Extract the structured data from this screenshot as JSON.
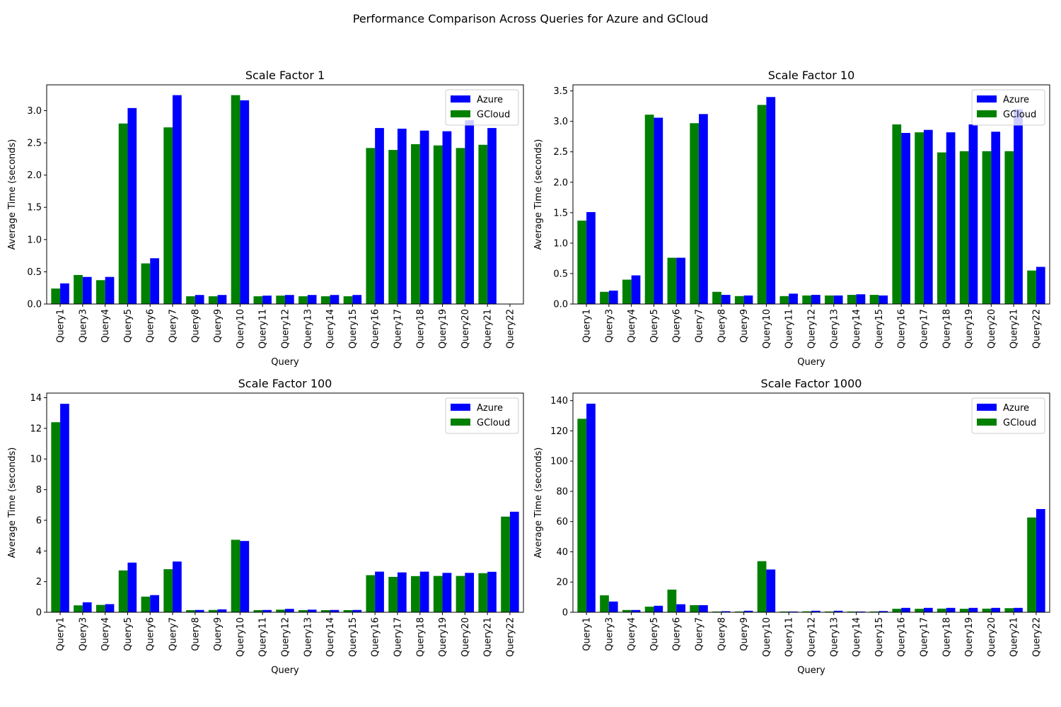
{
  "suptitle": "Performance Comparison Across Queries for Azure and GCloud",
  "colors": {
    "azure": "#0000ff",
    "gcloud": "#008000"
  },
  "chart_data": [
    {
      "type": "bar",
      "title": "Scale Factor 1",
      "xlabel": "Query",
      "ylabel": "Average Time (seconds)",
      "ylim": [
        0,
        3.4
      ],
      "yticks": [
        0.0,
        0.5,
        1.0,
        1.5,
        2.0,
        2.5,
        3.0
      ],
      "ytick_labels": [
        "0.0",
        "0.5",
        "1.0",
        "1.5",
        "2.0",
        "2.5",
        "3.0"
      ],
      "legend": {
        "placement": "upper right",
        "entries": [
          "Azure",
          "GCloud"
        ]
      },
      "categories": [
        "Query1",
        "Query3",
        "Query4",
        "Query5",
        "Query6",
        "Query7",
        "Query8",
        "Query9",
        "Query10",
        "Query11",
        "Query12",
        "Query13",
        "Query14",
        "Query15",
        "Query16",
        "Query17",
        "Query18",
        "Query19",
        "Query20",
        "Query21",
        "Query22"
      ],
      "series": [
        {
          "name": "GCloud",
          "values": [
            0.24,
            0.45,
            0.37,
            2.8,
            0.63,
            2.74,
            0.12,
            0.12,
            3.24,
            0.12,
            0.13,
            0.12,
            0.12,
            0.12,
            2.42,
            2.39,
            2.48,
            2.46,
            2.42,
            2.47,
            null
          ]
        },
        {
          "name": "Azure",
          "values": [
            0.32,
            0.42,
            0.42,
            3.04,
            0.71,
            3.24,
            0.14,
            0.14,
            3.16,
            0.13,
            0.14,
            0.14,
            0.14,
            0.14,
            2.73,
            2.72,
            2.69,
            2.68,
            2.85,
            2.73,
            null
          ]
        }
      ]
    },
    {
      "type": "bar",
      "title": "Scale Factor 10",
      "xlabel": "Query",
      "ylabel": "Average Time (seconds)",
      "ylim": [
        0,
        3.6
      ],
      "yticks": [
        0.0,
        0.5,
        1.0,
        1.5,
        2.0,
        2.5,
        3.0,
        3.5
      ],
      "ytick_labels": [
        "0.0",
        "0.5",
        "1.0",
        "1.5",
        "2.0",
        "2.5",
        "3.0",
        "3.5"
      ],
      "legend": {
        "placement": "upper right",
        "entries": [
          "Azure",
          "GCloud"
        ]
      },
      "categories": [
        "Query1",
        "Query3",
        "Query4",
        "Query5",
        "Query6",
        "Query7",
        "Query8",
        "Query9",
        "Query10",
        "Query11",
        "Query12",
        "Query13",
        "Query14",
        "Query15",
        "Query16",
        "Query17",
        "Query18",
        "Query19",
        "Query20",
        "Query21",
        "Query22"
      ],
      "series": [
        {
          "name": "GCloud",
          "values": [
            1.37,
            0.2,
            0.4,
            3.11,
            0.76,
            2.97,
            0.2,
            0.13,
            3.27,
            0.13,
            0.14,
            0.14,
            0.15,
            0.15,
            2.95,
            2.82,
            2.49,
            2.51,
            2.51,
            2.51,
            0.55
          ]
        },
        {
          "name": "Azure",
          "values": [
            1.51,
            0.22,
            0.47,
            3.06,
            0.76,
            3.12,
            0.15,
            0.14,
            3.4,
            0.17,
            0.15,
            0.14,
            0.16,
            0.14,
            2.81,
            2.86,
            2.82,
            2.95,
            2.83,
            3.2,
            0.61
          ]
        }
      ]
    },
    {
      "type": "bar",
      "title": "Scale Factor 100",
      "xlabel": "Query",
      "ylabel": "Average Time (seconds)",
      "ylim": [
        0,
        14.3
      ],
      "yticks": [
        0,
        2,
        4,
        6,
        8,
        10,
        12,
        14
      ],
      "ytick_labels": [
        "0",
        "2",
        "4",
        "6",
        "8",
        "10",
        "12",
        "14"
      ],
      "legend": {
        "placement": "upper right",
        "entries": [
          "Azure",
          "GCloud"
        ]
      },
      "categories": [
        "Query1",
        "Query3",
        "Query4",
        "Query5",
        "Query6",
        "Query7",
        "Query8",
        "Query9",
        "Query10",
        "Query11",
        "Query12",
        "Query13",
        "Query14",
        "Query15",
        "Query16",
        "Query17",
        "Query18",
        "Query19",
        "Query20",
        "Query21",
        "Query22"
      ],
      "series": [
        {
          "name": "GCloud",
          "values": [
            12.4,
            0.45,
            0.48,
            2.73,
            1.02,
            2.81,
            0.14,
            0.15,
            4.73,
            0.14,
            0.17,
            0.14,
            0.14,
            0.14,
            2.42,
            2.31,
            2.36,
            2.37,
            2.37,
            2.55,
            6.24
          ]
        },
        {
          "name": "Azure",
          "values": [
            13.6,
            0.65,
            0.53,
            3.24,
            1.12,
            3.31,
            0.15,
            0.19,
            4.65,
            0.15,
            0.22,
            0.17,
            0.15,
            0.15,
            2.65,
            2.6,
            2.65,
            2.57,
            2.57,
            2.64,
            6.56
          ]
        }
      ]
    },
    {
      "type": "bar",
      "title": "Scale Factor 1000",
      "xlabel": "Query",
      "ylabel": "Average Time (seconds)",
      "ylim": [
        0,
        145
      ],
      "yticks": [
        0,
        20,
        40,
        60,
        80,
        100,
        120,
        140
      ],
      "ytick_labels": [
        "0",
        "20",
        "40",
        "60",
        "80",
        "100",
        "120",
        "140"
      ],
      "legend": {
        "placement": "upper right",
        "entries": [
          "Azure",
          "GCloud"
        ]
      },
      "categories": [
        "Query1",
        "Query3",
        "Query4",
        "Query5",
        "Query6",
        "Query7",
        "Query8",
        "Query9",
        "Query10",
        "Query11",
        "Query12",
        "Query13",
        "Query14",
        "Query15",
        "Query16",
        "Query17",
        "Query18",
        "Query19",
        "Query20",
        "Query21",
        "Query22"
      ],
      "series": [
        {
          "name": "GCloud",
          "values": [
            128,
            11.2,
            1.5,
            3.7,
            15.0,
            4.7,
            0.5,
            0.5,
            33.8,
            0.5,
            0.6,
            0.5,
            0.5,
            0.5,
            2.3,
            2.3,
            2.4,
            2.3,
            2.4,
            2.7,
            62.7
          ]
        },
        {
          "name": "Azure",
          "values": [
            138,
            7.1,
            1.5,
            4.3,
            5.3,
            4.7,
            0.7,
            1.0,
            28.3,
            0.5,
            1.0,
            1.0,
            0.5,
            0.8,
            2.9,
            2.9,
            2.9,
            2.9,
            2.9,
            2.9,
            68.3
          ]
        }
      ]
    }
  ]
}
